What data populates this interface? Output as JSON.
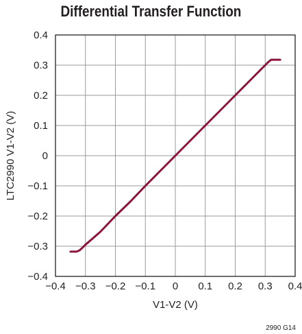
{
  "chart_data": {
    "type": "line",
    "title": "Differential Transfer Function",
    "xlabel": "V1-V2 (V)",
    "ylabel": "LTC2990 V1-V2 (V)",
    "xlim": [
      -0.4,
      0.4
    ],
    "ylim": [
      -0.4,
      0.4
    ],
    "xticks": [
      -0.4,
      -0.3,
      -0.2,
      -0.1,
      0,
      0.1,
      0.2,
      0.3,
      0.4
    ],
    "xtick_labels": [
      "−0.4",
      "−0.3",
      "−0.2",
      "−0.1",
      "0",
      "0.1",
      "0.2",
      "0.3",
      "0.4"
    ],
    "yticks": [
      -0.4,
      -0.3,
      -0.2,
      -0.1,
      0,
      0.1,
      0.2,
      0.3,
      0.4
    ],
    "ytick_labels": [
      "−0.4",
      "−0.3",
      "−0.2",
      "−0.1",
      "0",
      "0.1",
      "0.2",
      "0.3",
      "0.4"
    ],
    "grid": true,
    "series": [
      {
        "color": "#8b1538",
        "x": [
          -0.35,
          -0.33,
          -0.32,
          -0.31,
          -0.3,
          -0.28,
          -0.25,
          -0.2,
          -0.15,
          -0.1,
          -0.05,
          0,
          0.05,
          0.1,
          0.15,
          0.2,
          0.25,
          0.3,
          0.31,
          0.32,
          0.33,
          0.35
        ],
        "y": [
          -0.318,
          -0.318,
          -0.314,
          -0.305,
          -0.295,
          -0.278,
          -0.252,
          -0.2,
          -0.152,
          -0.1,
          -0.05,
          0,
          0.05,
          0.1,
          0.15,
          0.2,
          0.25,
          0.3,
          0.31,
          0.318,
          0.318,
          0.318
        ]
      }
    ],
    "figure_id": "2990 G14"
  }
}
